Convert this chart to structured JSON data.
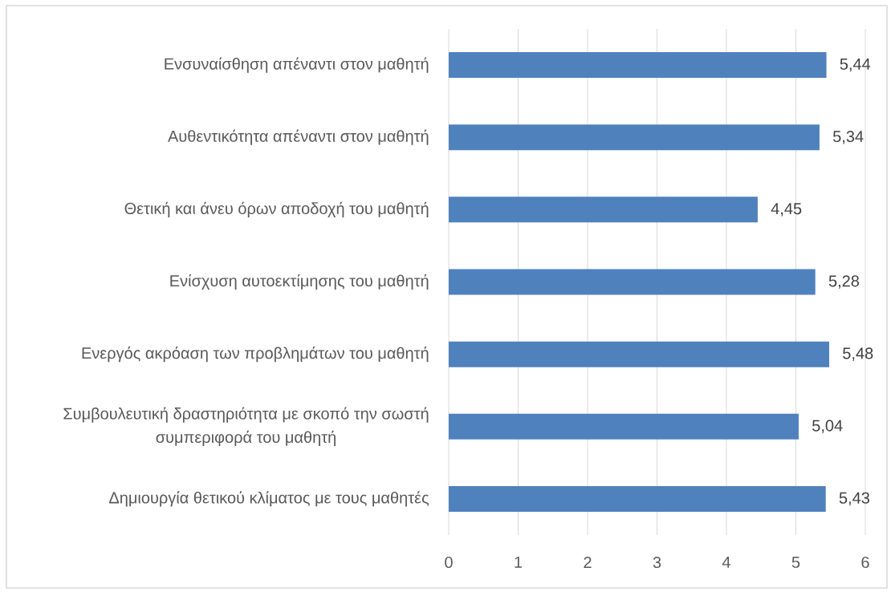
{
  "chart_data": {
    "type": "bar",
    "orientation": "horizontal",
    "categories": [
      "Ενσυναίσθηση απέναντι στον μαθητή",
      "Αυθεντικότητα απέναντι στον μαθητή",
      "Θετική και άνευ όρων αποδοχή του μαθητή",
      "Ενίσχυση αυτοεκτίμησης του μαθητή",
      "Ενεργός ακρόαση των προβλημάτων του μαθητή",
      "Συμβουλευτική δραστηριότητα με σκοπό την σωστή συμπεριφορά του μαθητή",
      "Δημιουργία θετικού κλίματος με τους μαθητές"
    ],
    "values": [
      5.44,
      5.34,
      4.45,
      5.28,
      5.48,
      5.04,
      5.43
    ],
    "value_labels": [
      "5,44",
      "5,34",
      "4,45",
      "5,28",
      "5,48",
      "5,04",
      "5,43"
    ],
    "color": "#4f81bd",
    "xlim": [
      0,
      6
    ],
    "xticks": [
      0,
      1,
      2,
      3,
      4,
      5,
      6
    ],
    "grid": "x"
  }
}
